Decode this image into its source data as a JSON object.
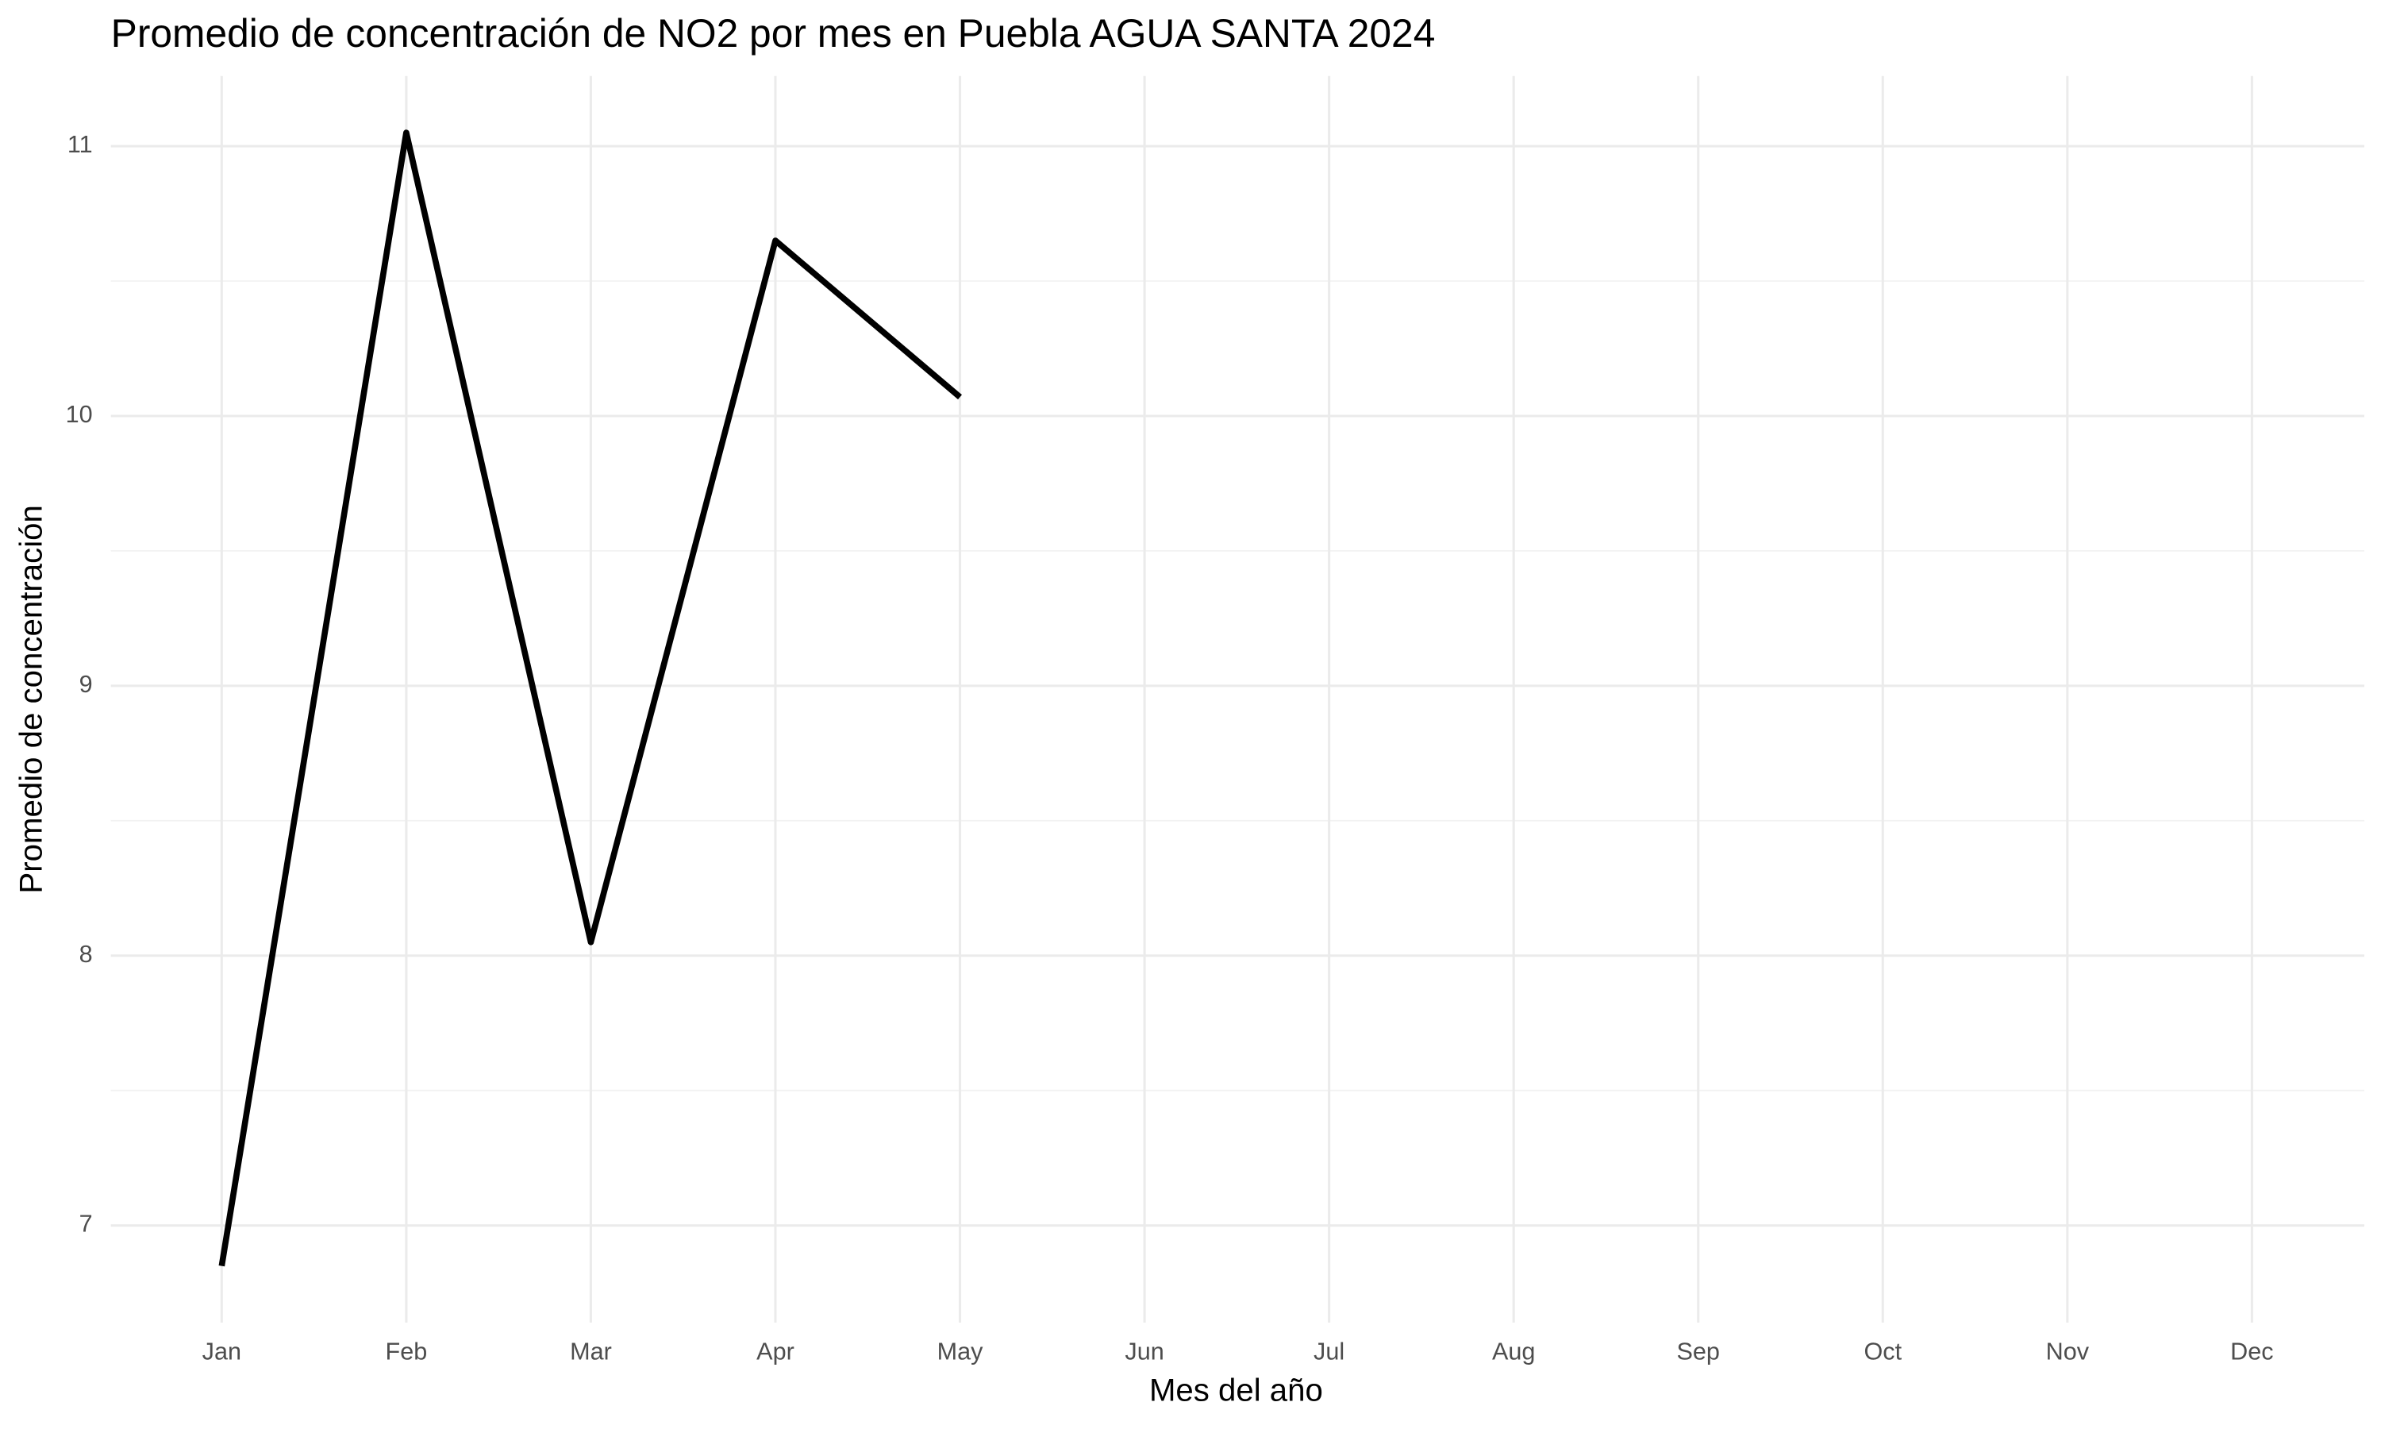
{
  "chart_data": {
    "type": "line",
    "title": "Promedio de concentración de NO2 por mes en Puebla AGUA SANTA 2024",
    "x_label": "Mes del año",
    "y_label": "Promedio de concentración",
    "categories": [
      "Jan",
      "Feb",
      "Mar",
      "Apr",
      "May",
      "Jun",
      "Jul",
      "Aug",
      "Sep",
      "Oct",
      "Nov",
      "Dec"
    ],
    "series": [
      {
        "name": "NO2",
        "color": "#000000",
        "values": [
          6.85,
          11.05,
          8.05,
          10.65,
          10.07,
          null,
          null,
          null,
          null,
          null,
          null,
          null
        ]
      }
    ],
    "ylim": [
      6.64,
      11.26
    ],
    "yticks": [
      7,
      8,
      9,
      10,
      11
    ],
    "grid": true
  }
}
